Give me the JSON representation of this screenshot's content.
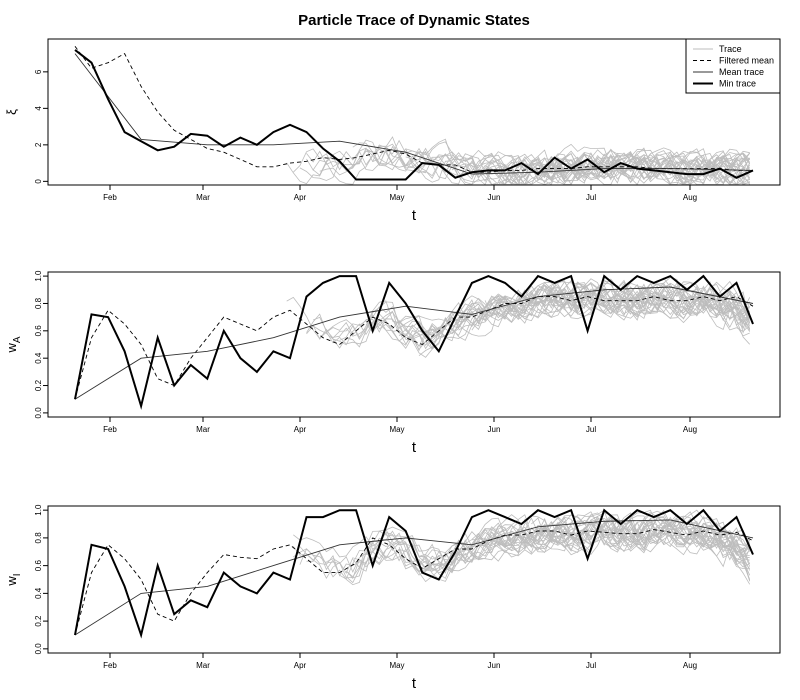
{
  "title": "Particle Trace of Dynamic States",
  "chart_data": [
    {
      "type": "line",
      "xlabel": "t",
      "ylabel": "ξ",
      "ylim": [
        -0.2,
        7.8
      ],
      "yticks": [
        0,
        2,
        4,
        6
      ],
      "xticks": [
        "Feb",
        "Mar",
        "Apr",
        "May",
        "Jun",
        "Jul",
        "Aug"
      ],
      "legend": [
        "Trace",
        "Filtered mean",
        "Mean trace",
        "Min trace"
      ],
      "legend_position": "top-right",
      "series": [
        {
          "name": "Filtered mean",
          "style": "dashed",
          "x": [
            0,
            5,
            10,
            15,
            20,
            25,
            30,
            35,
            40,
            45,
            50,
            55,
            60,
            65,
            70,
            75,
            80,
            85,
            90,
            95,
            100,
            105,
            110,
            115,
            120,
            125,
            130,
            135,
            140,
            145,
            150,
            155,
            160,
            165,
            170,
            175,
            180,
            185,
            190,
            195,
            200,
            205
          ],
          "values": [
            7.4,
            6.2,
            6.5,
            7.0,
            5.2,
            3.8,
            2.8,
            2.3,
            1.8,
            1.6,
            1.2,
            0.8,
            0.8,
            1.0,
            1.1,
            1.3,
            1.2,
            1.3,
            1.5,
            1.7,
            1.5,
            1.0,
            0.9,
            0.9,
            0.5,
            0.5,
            0.6,
            0.6,
            0.7,
            0.7,
            0.7,
            0.8,
            0.8,
            0.8,
            0.8,
            0.7,
            0.7,
            0.7,
            0.7,
            0.7,
            0.6,
            0.6
          ]
        },
        {
          "name": "Mean trace",
          "style": "solid-thin",
          "x": [
            0,
            20,
            40,
            60,
            80,
            100,
            120,
            140,
            160,
            180,
            205
          ],
          "values": [
            7.0,
            2.3,
            2.0,
            2.0,
            2.2,
            1.6,
            0.4,
            0.5,
            0.7,
            0.7,
            0.6
          ]
        },
        {
          "name": "Min trace",
          "style": "solid-thick",
          "x": [
            0,
            5,
            10,
            15,
            20,
            25,
            30,
            35,
            40,
            45,
            50,
            55,
            60,
            65,
            70,
            75,
            80,
            85,
            90,
            95,
            100,
            105,
            110,
            115,
            120,
            125,
            130,
            135,
            140,
            145,
            150,
            155,
            160,
            165,
            170,
            175,
            180,
            185,
            190,
            195,
            200,
            205
          ],
          "values": [
            7.2,
            6.5,
            4.5,
            2.7,
            2.2,
            1.7,
            1.9,
            2.6,
            2.5,
            1.9,
            2.4,
            2.0,
            2.7,
            3.1,
            2.7,
            1.8,
            1.1,
            0.1,
            0.1,
            0.1,
            0.1,
            1.0,
            0.9,
            0.2,
            0.5,
            0.6,
            0.6,
            1.0,
            0.4,
            1.3,
            0.7,
            1.2,
            0.5,
            1.0,
            0.7,
            0.6,
            0.5,
            0.4,
            0.4,
            0.7,
            0.2,
            0.6
          ]
        }
      ]
    },
    {
      "type": "line",
      "xlabel": "t",
      "ylabel": "w",
      "ylabel_sub": "A",
      "ylim": [
        -0.03,
        1.03
      ],
      "yticks": [
        "0.0",
        "0.2",
        "0.4",
        "0.6",
        "0.8",
        "1.0"
      ],
      "xticks": [
        "Feb",
        "Mar",
        "Apr",
        "May",
        "Jun",
        "Jul",
        "Aug"
      ],
      "series": [
        {
          "name": "Filtered mean",
          "style": "dashed",
          "x": [
            0,
            5,
            10,
            15,
            20,
            25,
            30,
            35,
            40,
            45,
            50,
            55,
            60,
            65,
            70,
            75,
            80,
            85,
            90,
            95,
            100,
            105,
            110,
            115,
            120,
            125,
            130,
            135,
            140,
            145,
            150,
            155,
            160,
            165,
            170,
            175,
            180,
            185,
            190,
            195,
            200,
            205
          ],
          "values": [
            0.1,
            0.55,
            0.75,
            0.65,
            0.5,
            0.25,
            0.2,
            0.4,
            0.55,
            0.7,
            0.65,
            0.6,
            0.7,
            0.75,
            0.65,
            0.55,
            0.5,
            0.6,
            0.7,
            0.65,
            0.55,
            0.5,
            0.6,
            0.7,
            0.7,
            0.75,
            0.8,
            0.8,
            0.85,
            0.85,
            0.82,
            0.85,
            0.82,
            0.82,
            0.82,
            0.85,
            0.82,
            0.82,
            0.85,
            0.82,
            0.85,
            0.78
          ]
        },
        {
          "name": "Mean trace",
          "style": "solid-thin",
          "x": [
            0,
            20,
            40,
            60,
            80,
            100,
            120,
            140,
            160,
            180,
            205
          ],
          "values": [
            0.1,
            0.4,
            0.45,
            0.55,
            0.7,
            0.78,
            0.72,
            0.85,
            0.9,
            0.92,
            0.8
          ]
        },
        {
          "name": "Min trace",
          "style": "solid-thick",
          "x": [
            0,
            5,
            10,
            15,
            20,
            25,
            30,
            35,
            40,
            45,
            50,
            55,
            60,
            65,
            70,
            75,
            80,
            85,
            90,
            95,
            100,
            105,
            110,
            115,
            120,
            125,
            130,
            135,
            140,
            145,
            150,
            155,
            160,
            165,
            170,
            175,
            180,
            185,
            190,
            195,
            200,
            205
          ],
          "values": [
            0.1,
            0.72,
            0.7,
            0.45,
            0.05,
            0.55,
            0.2,
            0.35,
            0.25,
            0.6,
            0.4,
            0.3,
            0.45,
            0.4,
            0.85,
            0.95,
            1.0,
            1.0,
            0.6,
            0.95,
            0.8,
            0.6,
            0.45,
            0.7,
            0.95,
            1.0,
            0.95,
            0.85,
            1.0,
            0.95,
            1.0,
            0.6,
            1.0,
            0.9,
            1.0,
            0.95,
            1.0,
            0.9,
            1.0,
            0.85,
            0.95,
            0.65
          ]
        }
      ]
    },
    {
      "type": "line",
      "xlabel": "t",
      "ylabel": "w",
      "ylabel_sub": "I",
      "ylim": [
        -0.03,
        1.03
      ],
      "yticks": [
        "0.0",
        "0.2",
        "0.4",
        "0.6",
        "0.8",
        "1.0"
      ],
      "xticks": [
        "Feb",
        "Mar",
        "Apr",
        "May",
        "Jun",
        "Jul",
        "Aug"
      ],
      "series": [
        {
          "name": "Filtered mean",
          "style": "dashed",
          "x": [
            0,
            5,
            10,
            15,
            20,
            25,
            30,
            35,
            40,
            45,
            50,
            55,
            60,
            65,
            70,
            75,
            80,
            85,
            90,
            95,
            100,
            105,
            110,
            115,
            120,
            125,
            130,
            135,
            140,
            145,
            150,
            155,
            160,
            165,
            170,
            175,
            180,
            185,
            190,
            195,
            200,
            205
          ],
          "values": [
            0.1,
            0.55,
            0.75,
            0.65,
            0.5,
            0.25,
            0.2,
            0.4,
            0.55,
            0.68,
            0.66,
            0.65,
            0.72,
            0.75,
            0.65,
            0.55,
            0.55,
            0.62,
            0.8,
            0.75,
            0.65,
            0.58,
            0.65,
            0.72,
            0.72,
            0.78,
            0.82,
            0.82,
            0.85,
            0.85,
            0.82,
            0.85,
            0.84,
            0.83,
            0.83,
            0.86,
            0.84,
            0.82,
            0.85,
            0.82,
            0.84,
            0.78
          ]
        },
        {
          "name": "Mean trace",
          "style": "solid-thin",
          "x": [
            0,
            20,
            40,
            60,
            80,
            100,
            120,
            140,
            160,
            180,
            205
          ],
          "values": [
            0.1,
            0.4,
            0.45,
            0.6,
            0.75,
            0.8,
            0.75,
            0.88,
            0.92,
            0.93,
            0.8
          ]
        },
        {
          "name": "Min trace",
          "style": "solid-thick",
          "x": [
            0,
            5,
            10,
            15,
            20,
            25,
            30,
            35,
            40,
            45,
            50,
            55,
            60,
            65,
            70,
            75,
            80,
            85,
            90,
            95,
            100,
            105,
            110,
            115,
            120,
            125,
            130,
            135,
            140,
            145,
            150,
            155,
            160,
            165,
            170,
            175,
            180,
            185,
            190,
            195,
            200,
            205
          ],
          "values": [
            0.1,
            0.75,
            0.72,
            0.45,
            0.1,
            0.6,
            0.25,
            0.35,
            0.3,
            0.55,
            0.45,
            0.4,
            0.55,
            0.5,
            0.95,
            0.95,
            1.0,
            1.0,
            0.6,
            0.95,
            0.85,
            0.55,
            0.5,
            0.7,
            0.95,
            1.0,
            0.95,
            0.9,
            1.0,
            0.95,
            1.0,
            0.65,
            1.0,
            0.9,
            1.0,
            0.95,
            1.0,
            0.9,
            1.0,
            0.85,
            0.95,
            0.68
          ]
        }
      ]
    }
  ]
}
